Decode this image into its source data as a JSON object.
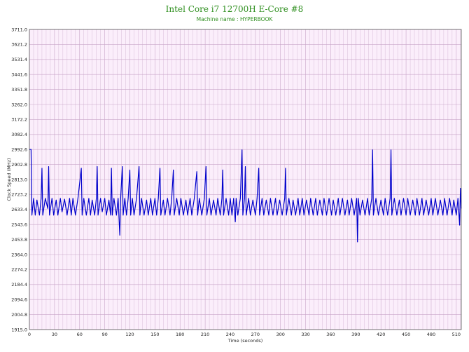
{
  "chart_data": {
    "type": "line",
    "title": "Intel Core i7 12700H E-Core #8",
    "subtitle": "Machine name : HYPERBOOK",
    "xlabel": "Time (seconds)",
    "ylabel": "Clock Speed (MHz)",
    "xlim": [
      0,
      516
    ],
    "ylim": [
      1915.0,
      3711.0
    ],
    "x_ticks": [
      0,
      30,
      60,
      90,
      120,
      150,
      180,
      210,
      240,
      270,
      300,
      330,
      360,
      390,
      420,
      450,
      480,
      510
    ],
    "y_ticks": [
      1915.0,
      2004.8,
      2094.6,
      2184.4,
      2274.2,
      2364.0,
      2453.8,
      2543.6,
      2633.4,
      2723.2,
      2813.0,
      2902.8,
      2992.6,
      3082.4,
      3172.2,
      3262.0,
      3351.8,
      3441.6,
      3531.4,
      3621.2,
      3711.0
    ],
    "grid": true,
    "colors": {
      "line": "#0000cc",
      "plot_bg": "#fbeefb",
      "grid": "#c9a6c9",
      "title": "#2f8f1f"
    },
    "series": [
      {
        "baseline": [
          2595,
          2700
        ],
        "points": [
          [
            0,
            2992.6
          ],
          [
            2,
            2992.6
          ],
          [
            3,
            2600
          ],
          [
            5,
            2700
          ],
          [
            7,
            2600
          ],
          [
            9,
            2690
          ],
          [
            12,
            2600
          ],
          [
            14,
            2700
          ],
          [
            15,
            2880
          ],
          [
            16,
            2600
          ],
          [
            19,
            2700
          ],
          [
            22,
            2640
          ],
          [
            23,
            2890
          ],
          [
            24,
            2600
          ],
          [
            27,
            2700
          ],
          [
            29,
            2600
          ],
          [
            32,
            2690
          ],
          [
            34,
            2600
          ],
          [
            37,
            2700
          ],
          [
            39,
            2620
          ],
          [
            42,
            2695
          ],
          [
            45,
            2600
          ],
          [
            48,
            2700
          ],
          [
            50,
            2600
          ],
          [
            52,
            2700
          ],
          [
            55,
            2600
          ],
          [
            58,
            2700
          ],
          [
            62,
            2880
          ],
          [
            63,
            2600
          ],
          [
            65,
            2700
          ],
          [
            68,
            2600
          ],
          [
            71,
            2700
          ],
          [
            73,
            2600
          ],
          [
            75,
            2690
          ],
          [
            78,
            2600
          ],
          [
            80,
            2700
          ],
          [
            81,
            2890
          ],
          [
            82,
            2600
          ],
          [
            85,
            2700
          ],
          [
            87,
            2620
          ],
          [
            90,
            2700
          ],
          [
            92,
            2600
          ],
          [
            95,
            2690
          ],
          [
            97,
            2600
          ],
          [
            98,
            2880
          ],
          [
            99,
            2600
          ],
          [
            101,
            2700
          ],
          [
            104,
            2600
          ],
          [
            106,
            2700
          ],
          [
            108,
            2480
          ],
          [
            109,
            2700
          ],
          [
            111,
            2890
          ],
          [
            112,
            2600
          ],
          [
            114,
            2700
          ],
          [
            116,
            2600
          ],
          [
            118,
            2700
          ],
          [
            120,
            2870
          ],
          [
            121,
            2600
          ],
          [
            123,
            2700
          ],
          [
            125,
            2600
          ],
          [
            128,
            2700
          ],
          [
            131,
            2890
          ],
          [
            132,
            2600
          ],
          [
            134,
            2700
          ],
          [
            137,
            2600
          ],
          [
            140,
            2690
          ],
          [
            142,
            2600
          ],
          [
            145,
            2700
          ],
          [
            147,
            2600
          ],
          [
            150,
            2700
          ],
          [
            152,
            2600
          ],
          [
            154,
            2700
          ],
          [
            156,
            2880
          ],
          [
            157,
            2600
          ],
          [
            160,
            2690
          ],
          [
            162,
            2600
          ],
          [
            165,
            2700
          ],
          [
            168,
            2600
          ],
          [
            170,
            2700
          ],
          [
            172,
            2870
          ],
          [
            173,
            2600
          ],
          [
            176,
            2700
          ],
          [
            179,
            2600
          ],
          [
            181,
            2700
          ],
          [
            184,
            2600
          ],
          [
            187,
            2690
          ],
          [
            189,
            2600
          ],
          [
            192,
            2700
          ],
          [
            194,
            2600
          ],
          [
            197,
            2700
          ],
          [
            200,
            2860
          ],
          [
            201,
            2600
          ],
          [
            203,
            2700
          ],
          [
            206,
            2600
          ],
          [
            209,
            2700
          ],
          [
            211,
            2890
          ],
          [
            212,
            2600
          ],
          [
            215,
            2700
          ],
          [
            217,
            2600
          ],
          [
            220,
            2690
          ],
          [
            223,
            2600
          ],
          [
            225,
            2700
          ],
          [
            228,
            2600
          ],
          [
            230,
            2700
          ],
          [
            231,
            2870
          ],
          [
            232,
            2600
          ],
          [
            235,
            2700
          ],
          [
            238,
            2600
          ],
          [
            240,
            2700
          ],
          [
            242,
            2600
          ],
          [
            244,
            2700
          ],
          [
            246,
            2560
          ],
          [
            247,
            2700
          ],
          [
            249,
            2600
          ],
          [
            252,
            2700
          ],
          [
            254,
            2990
          ],
          [
            255,
            2600
          ],
          [
            257,
            2700
          ],
          [
            258,
            2890
          ],
          [
            259,
            2600
          ],
          [
            262,
            2700
          ],
          [
            264,
            2600
          ],
          [
            267,
            2690
          ],
          [
            270,
            2600
          ],
          [
            272,
            2700
          ],
          [
            274,
            2880
          ],
          [
            275,
            2600
          ],
          [
            278,
            2700
          ],
          [
            280,
            2600
          ],
          [
            283,
            2690
          ],
          [
            286,
            2600
          ],
          [
            288,
            2700
          ],
          [
            291,
            2600
          ],
          [
            294,
            2700
          ],
          [
            296,
            2600
          ],
          [
            299,
            2690
          ],
          [
            302,
            2600
          ],
          [
            305,
            2700
          ],
          [
            306,
            2880
          ],
          [
            307,
            2600
          ],
          [
            310,
            2700
          ],
          [
            313,
            2600
          ],
          [
            315,
            2690
          ],
          [
            318,
            2600
          ],
          [
            321,
            2700
          ],
          [
            323,
            2600
          ],
          [
            326,
            2700
          ],
          [
            328,
            2600
          ],
          [
            331,
            2690
          ],
          [
            334,
            2600
          ],
          [
            336,
            2700
          ],
          [
            339,
            2600
          ],
          [
            342,
            2700
          ],
          [
            344,
            2600
          ],
          [
            347,
            2690
          ],
          [
            350,
            2600
          ],
          [
            352,
            2700
          ],
          [
            355,
            2600
          ],
          [
            358,
            2700
          ],
          [
            361,
            2600
          ],
          [
            363,
            2690
          ],
          [
            366,
            2600
          ],
          [
            369,
            2700
          ],
          [
            371,
            2600
          ],
          [
            374,
            2700
          ],
          [
            377,
            2600
          ],
          [
            380,
            2690
          ],
          [
            382,
            2600
          ],
          [
            385,
            2700
          ],
          [
            388,
            2600
          ],
          [
            391,
            2700
          ],
          [
            392,
            2440
          ],
          [
            393,
            2700
          ],
          [
            395,
            2600
          ],
          [
            398,
            2690
          ],
          [
            401,
            2600
          ],
          [
            404,
            2700
          ],
          [
            406,
            2600
          ],
          [
            409,
            2700
          ],
          [
            410,
            2990
          ],
          [
            411,
            2600
          ],
          [
            414,
            2700
          ],
          [
            417,
            2600
          ],
          [
            420,
            2690
          ],
          [
            423,
            2600
          ],
          [
            425,
            2700
          ],
          [
            428,
            2600
          ],
          [
            431,
            2700
          ],
          [
            432,
            2990
          ],
          [
            433,
            2600
          ],
          [
            436,
            2700
          ],
          [
            439,
            2600
          ],
          [
            442,
            2690
          ],
          [
            444,
            2600
          ],
          [
            447,
            2700
          ],
          [
            450,
            2600
          ],
          [
            452,
            2700
          ],
          [
            455,
            2600
          ],
          [
            458,
            2690
          ],
          [
            461,
            2600
          ],
          [
            463,
            2700
          ],
          [
            466,
            2600
          ],
          [
            469,
            2700
          ],
          [
            471,
            2600
          ],
          [
            474,
            2690
          ],
          [
            477,
            2600
          ],
          [
            480,
            2700
          ],
          [
            482,
            2600
          ],
          [
            485,
            2700
          ],
          [
            488,
            2600
          ],
          [
            491,
            2690
          ],
          [
            494,
            2600
          ],
          [
            496,
            2700
          ],
          [
            499,
            2600
          ],
          [
            502,
            2700
          ],
          [
            505,
            2600
          ],
          [
            507,
            2690
          ],
          [
            510,
            2600
          ],
          [
            512,
            2700
          ],
          [
            514,
            2540
          ],
          [
            515,
            2760
          ],
          [
            516,
            2640
          ]
        ]
      }
    ]
  }
}
